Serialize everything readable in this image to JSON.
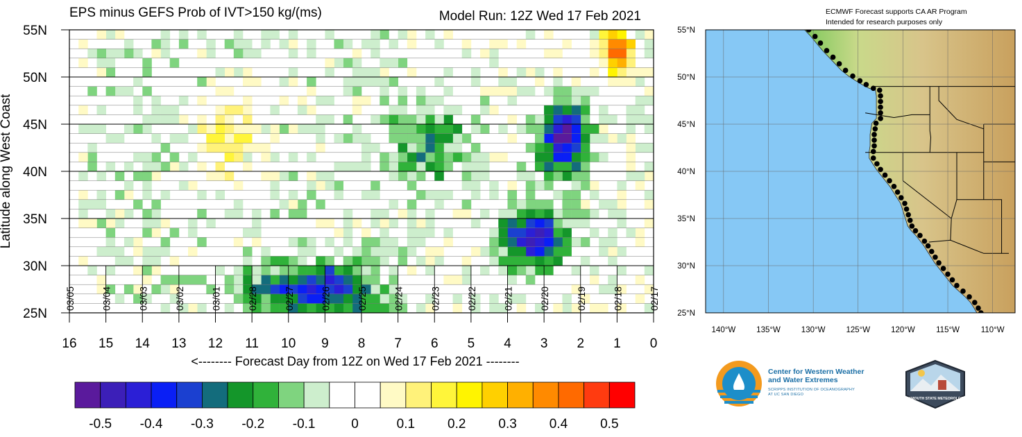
{
  "chart_data": [
    {
      "type": "heatmap",
      "title": "EPS minus GEFS Prob of IVT>150 kg/(ms)",
      "subtitle": "Model Run: 12Z Wed 17 Feb 2021",
      "xlabel": "<-------- Forecast Day from 12Z on Wed 17 Feb 2021 --------",
      "ylabel": "Latitude along West Coast",
      "xlim": [
        16,
        0
      ],
      "ylim": [
        25,
        55
      ],
      "x_ticks": [
        "16",
        "15",
        "14",
        "13",
        "12",
        "11",
        "10",
        "9",
        "8",
        "7",
        "6",
        "5",
        "4",
        "3",
        "2",
        "1",
        "0"
      ],
      "y_ticks": [
        "25N",
        "30N",
        "35N",
        "40N",
        "45N",
        "50N",
        "55N"
      ],
      "date_labels": [
        "03/05",
        "03/04",
        "03/03",
        "03/02",
        "03/01",
        "02/28",
        "02/27",
        "02/26",
        "02/25",
        "02/24",
        "02/23",
        "02/22",
        "02/21",
        "02/20",
        "02/19",
        "02/18",
        "02/17"
      ],
      "colorbar": {
        "ticks": [
          "-0.5",
          "-0.4",
          "-0.3",
          "-0.2",
          "-0.1",
          "0",
          "0.1",
          "0.2",
          "0.3",
          "0.4",
          "0.5"
        ],
        "colors": [
          "#5a1a9c",
          "#3c1fb8",
          "#2b1fd6",
          "#0a1ff5",
          "#1b40d0",
          "#136c7c",
          "#14962a",
          "#30b23a",
          "#7fd47f",
          "#cdeecd",
          "#ffffff",
          "#ffffff",
          "#fffac5",
          "#fff27a",
          "#fff53a",
          "#fff400",
          "#ffd000",
          "#ffb000",
          "#ff8a00",
          "#ff6a00",
          "#ff3b10",
          "#ff0000"
        ]
      },
      "features": [
        {
          "name": "green-blue band around day 9 at low latitudes",
          "x": [
            7.5,
            11
          ],
          "y": [
            25,
            30
          ],
          "value": -0.35
        },
        {
          "name": "green patch day 5-7",
          "x": [
            5,
            7.2
          ],
          "y": [
            38,
            48
          ],
          "value": -0.2
        },
        {
          "name": "blue-purple core day 2.3",
          "x": [
            2,
            3
          ],
          "y": [
            40,
            47
          ],
          "value": -0.5
        },
        {
          "name": "purple band day 2.5-3.5",
          "x": [
            2.5,
            4
          ],
          "y": [
            30,
            36
          ],
          "value": -0.45
        },
        {
          "name": "yellow patch day 11.5",
          "x": [
            11,
            12.5
          ],
          "y": [
            40,
            48
          ],
          "value": 0.15
        },
        {
          "name": "red patch day 1",
          "x": [
            0.8,
            1.2
          ],
          "y": [
            51,
            55
          ],
          "value": 0.5
        }
      ]
    },
    {
      "type": "map",
      "header": [
        "ECMWF Forecast supports CA AR Program",
        "Intended for research purposes only"
      ],
      "x_ticks": [
        "140°W",
        "135°W",
        "130°W",
        "125°W",
        "120°W",
        "115°W",
        "110°W"
      ],
      "y_ticks": [
        "25°N",
        "30°N",
        "35°N",
        "40°N",
        "45°N",
        "50°N",
        "55°N"
      ],
      "xlim": [
        -142,
        -107.5
      ],
      "ylim": [
        25,
        55
      ],
      "coast_points": [
        [
          -130.5,
          55
        ],
        [
          -129.8,
          54.3
        ],
        [
          -129.2,
          53.6
        ],
        [
          -128.5,
          52.8
        ],
        [
          -127.8,
          52.1
        ],
        [
          -127.1,
          51.4
        ],
        [
          -126.4,
          50.7
        ],
        [
          -125.6,
          50.1
        ],
        [
          -124.8,
          49.6
        ],
        [
          -124.1,
          49.2
        ],
        [
          -123.3,
          48.8
        ],
        [
          -122.6,
          48.6
        ],
        [
          -122.5,
          48.0
        ],
        [
          -122.5,
          47.4
        ],
        [
          -122.5,
          46.8
        ],
        [
          -122.5,
          46.2
        ],
        [
          -122.5,
          45.6
        ],
        [
          -123.0,
          45.1
        ],
        [
          -123.1,
          44.5
        ],
        [
          -123.2,
          43.9
        ],
        [
          -123.2,
          43.3
        ],
        [
          -123.2,
          42.7
        ],
        [
          -123.3,
          42.1
        ],
        [
          -123.3,
          41.4
        ],
        [
          -122.9,
          40.8
        ],
        [
          -122.5,
          40.2
        ],
        [
          -122.0,
          39.6
        ],
        [
          -121.5,
          39.0
        ],
        [
          -121.0,
          38.4
        ],
        [
          -120.6,
          37.8
        ],
        [
          -120.2,
          37.2
        ],
        [
          -119.8,
          36.6
        ],
        [
          -119.6,
          36.0
        ],
        [
          -119.4,
          35.4
        ],
        [
          -119.2,
          34.8
        ],
        [
          -119.0,
          34.2
        ],
        [
          -118.6,
          33.7
        ],
        [
          -118.1,
          33.2
        ],
        [
          -117.6,
          32.6
        ],
        [
          -117.2,
          32.1
        ],
        [
          -116.8,
          31.5
        ],
        [
          -116.4,
          30.9
        ],
        [
          -116.0,
          30.3
        ],
        [
          -115.5,
          29.7
        ],
        [
          -115.0,
          29.1
        ],
        [
          -114.5,
          28.5
        ],
        [
          -114.0,
          27.9
        ],
        [
          -113.3,
          27.3
        ],
        [
          -112.6,
          26.7
        ],
        [
          -112.0,
          26.1
        ],
        [
          -111.6,
          25.5
        ],
        [
          -111.3,
          25.0
        ]
      ]
    }
  ],
  "logos": {
    "cw3e_line1": "Center for Western Weather",
    "cw3e_line2": "and Water Extremes",
    "cw3e_sub1": "SCRIPPS INSTITUTION OF OCEANOGRAPHY",
    "cw3e_sub2": "AT UC SAN DIEGO",
    "plymouth": "PLYMOUTH STATE METEOROLOGY"
  }
}
